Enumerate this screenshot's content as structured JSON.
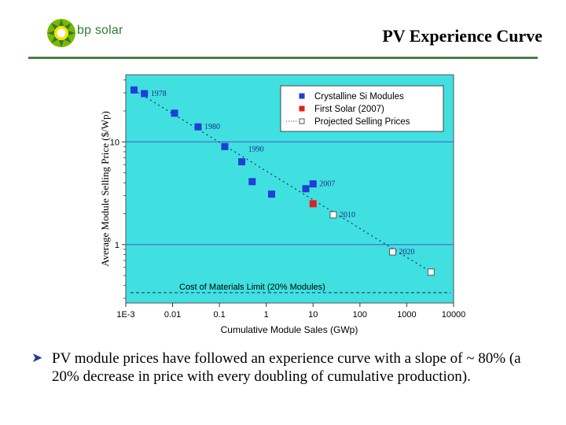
{
  "brand": {
    "logo_text": "bp solar",
    "logo_icon": "bp-helios-sunflower-icon"
  },
  "slide": {
    "title": "PV Experience Curve"
  },
  "bullet": {
    "marker_icon": "arrow-bullet-icon",
    "text": "PV module prices have followed an experience curve with a slope of ~ 80% (a 20% decrease in price with every doubling of cumulative production)."
  },
  "colors": {
    "plot_bg": "#40e0e0",
    "crystalline": "#1f3fd6",
    "first_solar": "#e02020",
    "rule": "#4a7d4a",
    "logo_green": "#2e7d32"
  },
  "chart_data": {
    "type": "scatter",
    "xlabel": "Cumulative Module Sales (GWp)",
    "ylabel": "Average Module Selling Price ($/Wp)",
    "xscale": "log",
    "yscale": "log",
    "xlim": [
      0.001,
      10000
    ],
    "ylim": [
      0.27,
      45
    ],
    "xticks": [
      {
        "v": 0.001,
        "label": "1E-3"
      },
      {
        "v": 0.01,
        "label": "0.01"
      },
      {
        "v": 0.1,
        "label": "0.1"
      },
      {
        "v": 1,
        "label": "1"
      },
      {
        "v": 10,
        "label": "10"
      },
      {
        "v": 100,
        "label": "100"
      },
      {
        "v": 1000,
        "label": "1000"
      },
      {
        "v": 10000,
        "label": "10000"
      }
    ],
    "yticks": [
      {
        "v": 1,
        "label": "1"
      },
      {
        "v": 10,
        "label": "10"
      }
    ],
    "grid": "horizontal at decades",
    "legend_position": "top-right",
    "series": [
      {
        "name": "Crystalline Si Modules",
        "marker": "filled-square",
        "points": [
          [
            0.0015,
            32
          ],
          [
            0.0025,
            29.5
          ],
          [
            0.011,
            19
          ],
          [
            0.035,
            14
          ],
          [
            0.13,
            9
          ],
          [
            0.3,
            6.4
          ],
          [
            0.5,
            4.1
          ],
          [
            1.3,
            3.1
          ],
          [
            7,
            3.5
          ],
          [
            10,
            3.9
          ]
        ]
      },
      {
        "name": "First Solar (2007)",
        "marker": "filled-square",
        "points": [
          [
            10,
            2.5
          ]
        ]
      },
      {
        "name": "Projected Selling Prices",
        "marker": "open-square",
        "points": [
          [
            27,
            1.95
          ],
          [
            500,
            0.85
          ],
          [
            3300,
            0.54
          ]
        ]
      }
    ],
    "trend_line": {
      "from": [
        0.0015,
        32
      ],
      "to": [
        3300,
        0.54
      ],
      "style": "dotted"
    },
    "limit_line": {
      "label": "Cost of Materials Limit (20% Modules)",
      "y": 0.34,
      "style": "dashed"
    },
    "annotations": [
      {
        "text": "1978",
        "x": 0.0025,
        "y": 29.5
      },
      {
        "text": "1980",
        "x": 0.035,
        "y": 14
      },
      {
        "text": "1990",
        "x": 0.3,
        "y": 8.5
      },
      {
        "text": "2007",
        "x": 10,
        "y": 3.9
      },
      {
        "text": "2010",
        "x": 27,
        "y": 1.95
      },
      {
        "text": "2020",
        "x": 500,
        "y": 0.85
      }
    ]
  }
}
